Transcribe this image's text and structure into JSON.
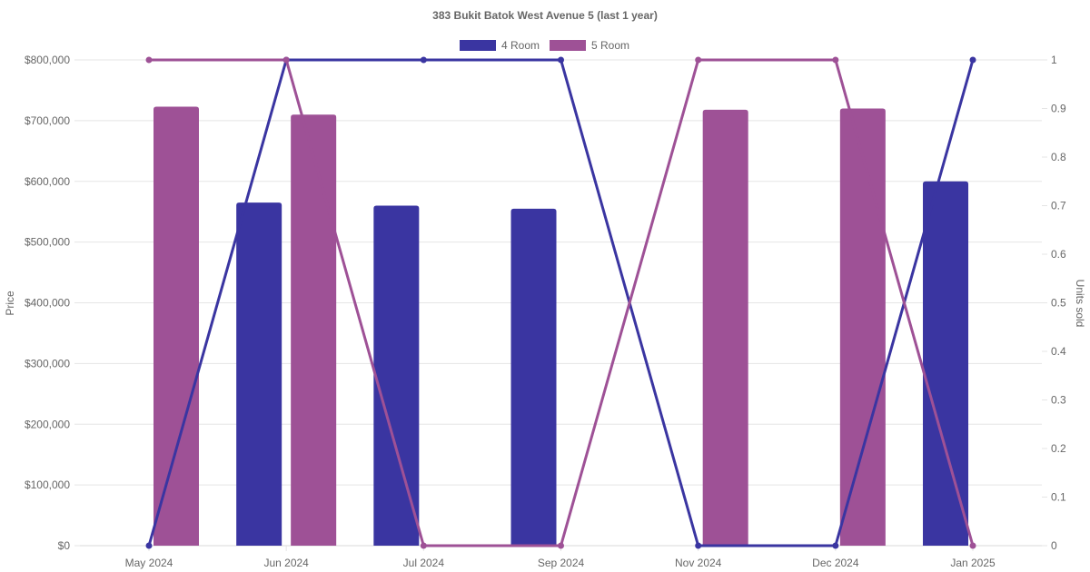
{
  "chart_data": {
    "type": "bar",
    "title": "383 Bukit Batok West Avenue 5 (last 1 year)",
    "categories": [
      "May 2024",
      "Jun 2024",
      "Jul 2024",
      "Sep 2024",
      "Nov 2024",
      "Dec 2024",
      "Jan 2025"
    ],
    "ylabel": "Price",
    "y2label": "Units sold",
    "ylim": [
      0,
      800000
    ],
    "y2lim": [
      0,
      1
    ],
    "y_ticks": [
      "$0",
      "$100,000",
      "$200,000",
      "$300,000",
      "$400,000",
      "$500,000",
      "$600,000",
      "$700,000",
      "$800,000"
    ],
    "y2_ticks": [
      "0",
      "0.1",
      "0.2",
      "0.3",
      "0.4",
      "0.5",
      "0.6",
      "0.7",
      "0.8",
      "0.9",
      "1"
    ],
    "legend_position": "top-center",
    "grid": true,
    "series": [
      {
        "name": "4 Room",
        "color": "#3a35a1",
        "price": [
          null,
          565000,
          560000,
          555000,
          null,
          null,
          600000
        ],
        "units_sold": [
          0,
          1,
          1,
          1,
          0,
          0,
          1
        ]
      },
      {
        "name": "5 Room",
        "color": "#9e5196",
        "price": [
          723000,
          710000,
          null,
          null,
          718000,
          720000,
          null
        ],
        "units_sold": [
          1,
          1,
          0,
          0,
          1,
          1,
          0
        ]
      }
    ]
  }
}
